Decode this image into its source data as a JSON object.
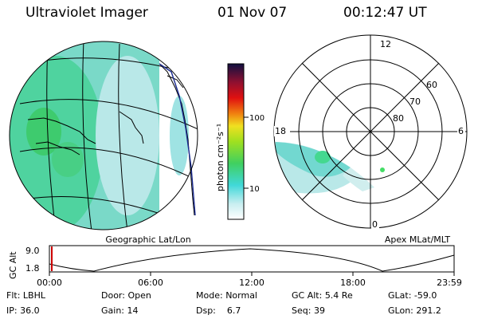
{
  "header": {
    "instrument": "Ultraviolet Imager",
    "date": "01 Nov 07",
    "time": "00:12:47 UT"
  },
  "colorbar": {
    "label": "photon cm⁻²s⁻¹",
    "ticks": [
      "100",
      "10"
    ]
  },
  "geo_map": {
    "caption": "Geographic Lat/Lon"
  },
  "polar_plot": {
    "caption": "Apex MLat/MLT",
    "mlt_labels": [
      "12",
      "18",
      "6",
      "0"
    ],
    "mlat_labels": [
      "60",
      "70",
      "80"
    ]
  },
  "altitude_panel": {
    "ylabel": "GC Alt",
    "yticks": [
      "9.0",
      "1.8"
    ],
    "xticks": [
      "00:00",
      "06:00",
      "12:00",
      "18:00",
      "23:59"
    ]
  },
  "footer": {
    "row1": [
      {
        "key": "Flt:",
        "val": "LBHL"
      },
      {
        "key": "Door:",
        "val": "Open"
      },
      {
        "key": "Mode:",
        "val": "Normal"
      },
      {
        "key": "GC Alt:",
        "val": "5.4 Re"
      },
      {
        "key": "GLat:",
        "val": "-59.0"
      }
    ],
    "row2": [
      {
        "key": "IP:",
        "val": "36.0"
      },
      {
        "key": "Gain:",
        "val": "14"
      },
      {
        "key": "Dsp:",
        "val": "6.7"
      },
      {
        "key": "Seq:",
        "val": "39"
      },
      {
        "key": "GLon:",
        "val": "291.2"
      }
    ]
  },
  "colors": {
    "aurora_cyan": "#5ad8d8",
    "aurora_green": "#44dd66",
    "altitude_line": "#000000",
    "marker_red": "#cc0000"
  }
}
